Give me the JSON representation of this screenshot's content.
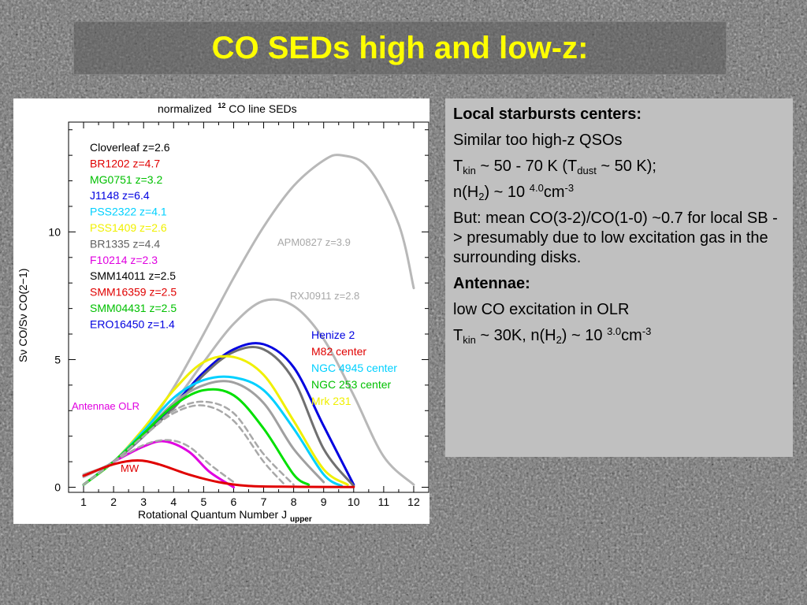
{
  "slide": {
    "title": "CO SEDs high and low-z:",
    "colors": {
      "title": "#ffff00",
      "background": "#6e6e6e",
      "panel": "#c0c0c0"
    }
  },
  "notes": {
    "p1": "Local starbursts centers:",
    "p2": "Similar too high-z QSOs",
    "p3": {
      "a": "T",
      "b": "kin",
      "c": " ~ 50 - 70 K  (T",
      "d": "dust",
      "e": " ~ 50 K);"
    },
    "p4": {
      "a": " n(H",
      "b": "2",
      "c": ") ~ 10 ",
      "d": "4.0",
      "e": "cm",
      "f": "-3"
    },
    "p5": "But: mean CO(3-2)/CO(1-0) ~0.7 for local SB -> presumably due to low excitation gas in the surrounding disks.",
    "p6": "Antennae:",
    "p7": "low CO excitation in OLR",
    "p8": {
      "a": "T",
      "b": "kin",
      "c": " ~ 30K,  n(H",
      "d": "2",
      "e": ") ~ 10 ",
      "f": "3.0",
      "g": "cm",
      "h": "-3"
    }
  },
  "chart_data": {
    "type": "line",
    "title": "normalized",
    "title_sup": "12",
    "title_rest": "CO line SEDs",
    "xlabel": "Rotational Quantum Number J",
    "xlabel_sub": "upper",
    "ylabel": "Sν CO/Sν CO(2−1)",
    "xlim": [
      0.5,
      12.5
    ],
    "ylim": [
      -0.2,
      14.3
    ],
    "x_ticks": [
      "1",
      "2",
      "3",
      "4",
      "5",
      "6",
      "7",
      "8",
      "9",
      "10",
      "11",
      "12"
    ],
    "y_ticks": [
      "0",
      "5",
      "10"
    ],
    "legend_left": [
      {
        "label": "Cloverleaf  z=2.6",
        "color": "#000000"
      },
      {
        "label": "BR1202  z=4.7",
        "color": "#e00000"
      },
      {
        "label": "MG0751  z=3.2",
        "color": "#00c000"
      },
      {
        "label": "J1148  z=6.4",
        "color": "#0000e0"
      },
      {
        "label": "PSS2322  z=4.1",
        "color": "#00d0ff"
      },
      {
        "label": "PSS1409  z=2.6",
        "color": "#f0f000"
      },
      {
        "label": "BR1335  z=4.4",
        "color": "#606060"
      },
      {
        "label": "F10214  z=2.3",
        "color": "#e000e0"
      },
      {
        "label": "SMM14011  z=2.5",
        "color": "#000000"
      },
      {
        "label": "SMM16359  z=2.5",
        "color": "#e00000"
      },
      {
        "label": "SMM04431  z=2.5",
        "color": "#00c000"
      },
      {
        "label": "ERO16450  z=1.4",
        "color": "#0000e0"
      }
    ],
    "legend_right": [
      {
        "label": "Henize 2",
        "color": "#0000e0"
      },
      {
        "label": "M82  center",
        "color": "#e00000"
      },
      {
        "label": "NGC  4945  center",
        "color": "#00d0ff"
      },
      {
        "label": "NGC  253  center",
        "color": "#00c000"
      },
      {
        "label": "Mrk  231",
        "color": "#f0f000"
      }
    ],
    "annotations": {
      "apm": "APM0827  z=3.9",
      "rxj": "RXJ0911  z=2.8",
      "antennae": "Antennae  OLR",
      "mw": "MW"
    },
    "series": [
      {
        "name": "APM0827  z=3.9",
        "color": "#b8b8b8",
        "dash": false,
        "width": 3,
        "x": [
          1,
          2,
          3,
          4,
          5,
          6,
          7,
          8,
          9,
          9.6,
          10.5,
          11.5,
          12
        ],
        "y": [
          0.5,
          1.0,
          2.2,
          3.9,
          6.0,
          8.2,
          10.2,
          11.8,
          12.8,
          13.0,
          12.5,
          10.3,
          7.8
        ]
      },
      {
        "name": "RXJ0911  z=2.8",
        "color": "#b8b8b8",
        "dash": false,
        "width": 3,
        "x": [
          1,
          2,
          3,
          4,
          5,
          6,
          7,
          8,
          9,
          10,
          11,
          12
        ],
        "y": [
          0.4,
          1.0,
          2.0,
          3.3,
          4.9,
          6.4,
          7.3,
          7.1,
          5.8,
          3.6,
          1.2,
          0.1
        ]
      },
      {
        "name": "Henize 2",
        "color": "#0000e0",
        "dash": false,
        "width": 3,
        "x": [
          1,
          2,
          3,
          4,
          5,
          6,
          7,
          8,
          9,
          10
        ],
        "y": [
          0.1,
          1.0,
          2.0,
          3.2,
          4.5,
          5.4,
          5.6,
          4.7,
          2.4,
          0.1
        ]
      },
      {
        "name": "M82  center",
        "color": "#707070",
        "dash": false,
        "width": 3,
        "x": [
          1,
          2,
          3,
          4,
          5,
          6,
          7,
          8,
          9,
          10
        ],
        "y": [
          0.1,
          1.0,
          2.0,
          3.1,
          4.4,
          5.3,
          5.4,
          4.2,
          1.5,
          0.05
        ]
      },
      {
        "name": "Mrk  231",
        "color": "#f0f000",
        "dash": false,
        "width": 3,
        "x": [
          1,
          2,
          3,
          4,
          5,
          6,
          7,
          8,
          9,
          9.8
        ],
        "y": [
          0.1,
          1.0,
          2.3,
          3.8,
          4.9,
          5.1,
          4.4,
          2.6,
          0.7,
          0.1
        ]
      },
      {
        "name": "NGC  4945  center",
        "color": "#00d0ff",
        "dash": false,
        "width": 3,
        "x": [
          1,
          2,
          3,
          4,
          5,
          6,
          7,
          8,
          9,
          9.6
        ],
        "y": [
          0.1,
          1.0,
          2.2,
          3.5,
          4.2,
          4.3,
          3.8,
          2.3,
          0.5,
          0.05
        ]
      },
      {
        "name": "BR1335  z=4.4",
        "color": "#a0a0a0",
        "dash": false,
        "width": 3,
        "x": [
          1,
          2,
          3,
          4,
          5,
          6,
          7,
          8,
          9
        ],
        "y": [
          0.1,
          1.0,
          2.1,
          3.3,
          4.0,
          4.1,
          3.3,
          1.5,
          0.2
        ]
      },
      {
        "name": "NGC  253  center",
        "color": "#00e000",
        "dash": false,
        "width": 3,
        "x": [
          1,
          2,
          3,
          4,
          5,
          6,
          7,
          8,
          8.5
        ],
        "y": [
          0.1,
          1.0,
          2.1,
          3.2,
          3.8,
          3.6,
          2.3,
          0.5,
          0.1
        ]
      },
      {
        "name": "dashed-1",
        "color": "#a8a8a8",
        "dash": true,
        "width": 2.5,
        "x": [
          1,
          2,
          3,
          4,
          5,
          6,
          7,
          8
        ],
        "y": [
          0.1,
          1.0,
          2.0,
          3.0,
          3.35,
          2.9,
          1.3,
          0.1
        ]
      },
      {
        "name": "dashed-2",
        "color": "#a8a8a8",
        "dash": true,
        "width": 2.5,
        "x": [
          1,
          2,
          3,
          4,
          5,
          6,
          7,
          7.7
        ],
        "y": [
          0.1,
          1.0,
          2.0,
          2.9,
          3.2,
          2.6,
          1.0,
          0.1
        ]
      },
      {
        "name": "Antennae  OLR",
        "color": "#e000e0",
        "dash": false,
        "width": 3,
        "x": [
          2,
          3,
          3.7,
          4.5,
          5.2,
          6
        ],
        "y": [
          1.0,
          1.6,
          1.8,
          1.4,
          0.6,
          0.0
        ]
      },
      {
        "name": "dashed-3",
        "color": "#a8a8a8",
        "dash": true,
        "width": 2.5,
        "x": [
          2,
          3,
          3.8,
          4.5,
          5.2,
          6
        ],
        "y": [
          1.0,
          1.65,
          1.85,
          1.6,
          0.9,
          0.2
        ]
      },
      {
        "name": "MW",
        "color": "#e00000",
        "dash": false,
        "width": 3,
        "x": [
          1,
          2,
          2.8,
          3.5,
          4.5,
          5.5,
          6.5,
          8,
          10
        ],
        "y": [
          0.45,
          0.9,
          1.05,
          0.9,
          0.5,
          0.2,
          0.05,
          0.02,
          0.01
        ]
      }
    ]
  }
}
